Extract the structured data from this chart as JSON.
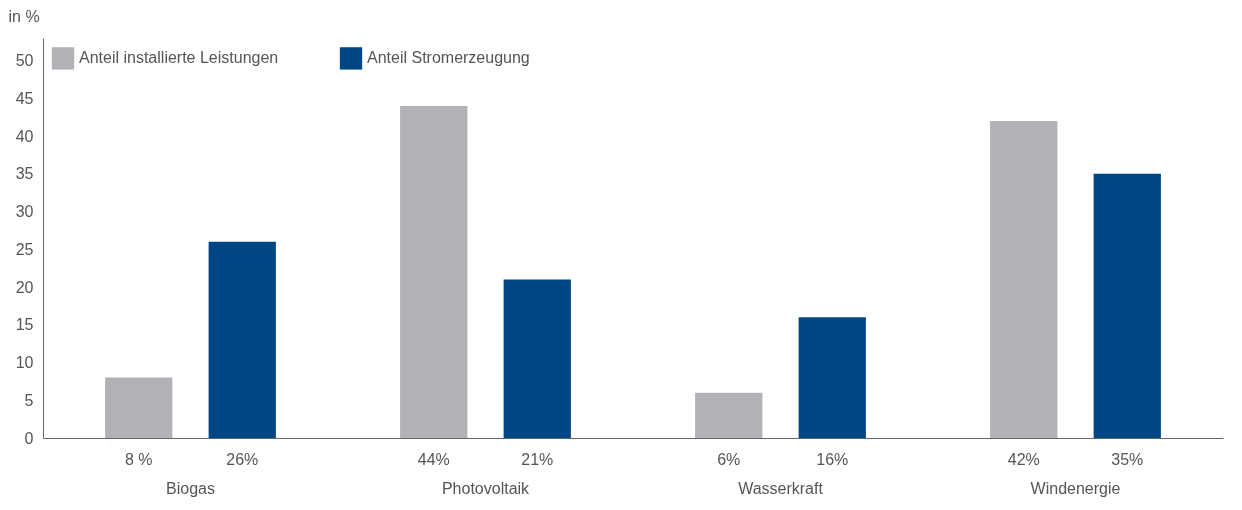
{
  "chart_data": {
    "type": "bar",
    "ylabel": "in %",
    "categories": [
      "Biogas",
      "Photovoltaik",
      "Wasserkraft",
      "Windenergie"
    ],
    "series": [
      {
        "name": "Anteil installierte Leistungen",
        "color": "#b1b2b6",
        "values": [
          8,
          44,
          6,
          42
        ],
        "value_labels": [
          "8 %",
          "44%",
          "6%",
          "42%"
        ]
      },
      {
        "name": "Anteil Stromerzeugung",
        "color": "#004685",
        "values": [
          26,
          21,
          16,
          35
        ],
        "value_labels": [
          "26%",
          "21%",
          "16%",
          "35%"
        ]
      }
    ],
    "ylim": [
      0,
      53
    ],
    "yticks": [
      0,
      5,
      10,
      15,
      20,
      25,
      30,
      35,
      40,
      45,
      50
    ],
    "grid": false,
    "legend": "top left"
  }
}
